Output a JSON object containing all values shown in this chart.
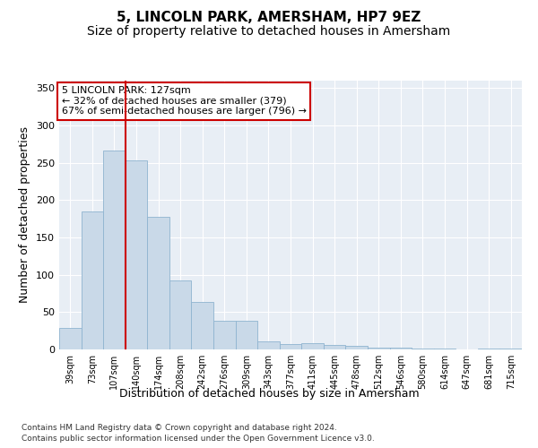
{
  "title": "5, LINCOLN PARK, AMERSHAM, HP7 9EZ",
  "subtitle": "Size of property relative to detached houses in Amersham",
  "xlabel": "Distribution of detached houses by size in Amersham",
  "ylabel": "Number of detached properties",
  "categories": [
    "39sqm",
    "73sqm",
    "107sqm",
    "140sqm",
    "174sqm",
    "208sqm",
    "242sqm",
    "276sqm",
    "309sqm",
    "343sqm",
    "377sqm",
    "411sqm",
    "445sqm",
    "478sqm",
    "512sqm",
    "546sqm",
    "580sqm",
    "614sqm",
    "647sqm",
    "681sqm",
    "715sqm"
  ],
  "values": [
    29,
    185,
    267,
    253,
    178,
    93,
    64,
    39,
    38,
    11,
    7,
    8,
    6,
    5,
    3,
    2,
    1,
    1,
    0,
    1,
    1
  ],
  "bar_color": "#c9d9e8",
  "bar_edge_color": "#8fb4d0",
  "vline_x": 2.5,
  "vline_color": "#cc0000",
  "annotation_text": "5 LINCOLN PARK: 127sqm\n← 32% of detached houses are smaller (379)\n67% of semi-detached houses are larger (796) →",
  "annotation_box_color": "#ffffff",
  "annotation_box_edge": "#cc0000",
  "ylim": [
    0,
    360
  ],
  "yticks": [
    0,
    50,
    100,
    150,
    200,
    250,
    300,
    350
  ],
  "footer_line1": "Contains HM Land Registry data © Crown copyright and database right 2024.",
  "footer_line2": "Contains public sector information licensed under the Open Government Licence v3.0.",
  "plot_bg_color": "#e8eef5",
  "title_fontsize": 11,
  "subtitle_fontsize": 10,
  "xlabel_fontsize": 9,
  "ylabel_fontsize": 9,
  "tick_fontsize": 8,
  "xtick_fontsize": 7
}
